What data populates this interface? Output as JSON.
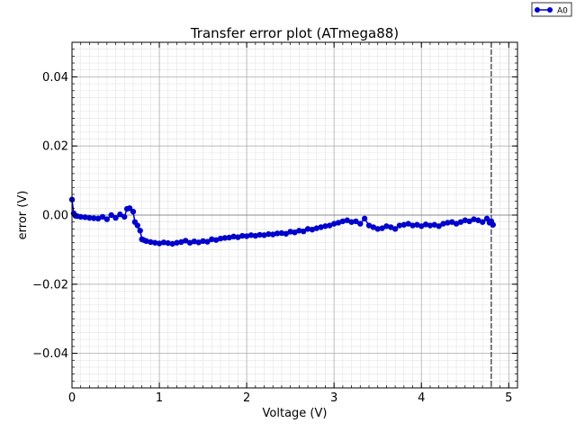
{
  "chart_data": {
    "type": "scatter",
    "title": "Transfer error plot (ATmega88)",
    "xlabel": "Voltage (V)",
    "ylabel": "error (V)",
    "xlim": [
      0,
      5.1
    ],
    "ylim": [
      -0.05,
      0.05
    ],
    "x_ticks": [
      0,
      1,
      2,
      3,
      4,
      5
    ],
    "x_tick_labels": [
      "0",
      "1",
      "2",
      "3",
      "4",
      "5"
    ],
    "y_ticks": [
      -0.04,
      -0.02,
      0.0,
      0.02,
      0.04
    ],
    "y_tick_labels": [
      "−0.04",
      "−0.02",
      "0.00",
      "0.02",
      "0.04"
    ],
    "grid": "major and minor",
    "reference_line_y": 0.0,
    "vertical_marker_x": 4.8,
    "legend": {
      "position": "top-right, outside plot",
      "entries": [
        "A0"
      ]
    },
    "series": [
      {
        "name": "A0",
        "color": "#0000cc",
        "marker": "circle",
        "x": [
          0.0,
          0.02,
          0.04,
          0.06,
          0.1,
          0.15,
          0.2,
          0.25,
          0.3,
          0.35,
          0.4,
          0.45,
          0.5,
          0.55,
          0.6,
          0.63,
          0.66,
          0.7,
          0.72,
          0.75,
          0.78,
          0.8,
          0.82,
          0.85,
          0.9,
          0.95,
          1.0,
          1.05,
          1.1,
          1.15,
          1.2,
          1.25,
          1.3,
          1.35,
          1.4,
          1.45,
          1.5,
          1.55,
          1.6,
          1.65,
          1.7,
          1.75,
          1.8,
          1.85,
          1.9,
          1.95,
          2.0,
          2.05,
          2.1,
          2.15,
          2.2,
          2.25,
          2.3,
          2.35,
          2.4,
          2.45,
          2.5,
          2.55,
          2.6,
          2.65,
          2.7,
          2.75,
          2.8,
          2.85,
          2.9,
          2.95,
          3.0,
          3.05,
          3.1,
          3.15,
          3.2,
          3.25,
          3.3,
          3.35,
          3.4,
          3.45,
          3.5,
          3.55,
          3.6,
          3.65,
          3.7,
          3.75,
          3.8,
          3.85,
          3.9,
          3.95,
          4.0,
          4.05,
          4.1,
          4.15,
          4.2,
          4.25,
          4.3,
          4.35,
          4.4,
          4.45,
          4.5,
          4.55,
          4.6,
          4.65,
          4.7,
          4.75,
          4.78,
          4.8,
          4.82
        ],
        "y": [
          0.0045,
          0.0005,
          -0.0002,
          -0.0003,
          -0.0005,
          -0.0006,
          -0.0008,
          -0.0009,
          -0.001,
          -0.0005,
          -0.0012,
          0.0,
          -0.0008,
          0.0002,
          -0.0005,
          0.0018,
          0.002,
          0.001,
          -0.002,
          -0.003,
          -0.0045,
          -0.007,
          -0.0072,
          -0.0075,
          -0.0078,
          -0.008,
          -0.0082,
          -0.0079,
          -0.0081,
          -0.0083,
          -0.008,
          -0.0078,
          -0.0074,
          -0.008,
          -0.0076,
          -0.0079,
          -0.0075,
          -0.0077,
          -0.007,
          -0.0072,
          -0.0068,
          -0.0066,
          -0.0065,
          -0.0062,
          -0.0064,
          -0.006,
          -0.0061,
          -0.0058,
          -0.006,
          -0.0057,
          -0.0058,
          -0.0055,
          -0.0056,
          -0.0053,
          -0.0052,
          -0.0054,
          -0.0048,
          -0.005,
          -0.0045,
          -0.0047,
          -0.004,
          -0.0042,
          -0.0038,
          -0.0035,
          -0.0032,
          -0.003,
          -0.0025,
          -0.0022,
          -0.0018,
          -0.0015,
          -0.002,
          -0.0018,
          -0.0025,
          -0.001,
          -0.003,
          -0.0035,
          -0.004,
          -0.0038,
          -0.0032,
          -0.0035,
          -0.004,
          -0.003,
          -0.0028,
          -0.0025,
          -0.003,
          -0.0028,
          -0.0032,
          -0.0027,
          -0.003,
          -0.0028,
          -0.0032,
          -0.0025,
          -0.0022,
          -0.002,
          -0.0025,
          -0.002,
          -0.0015,
          -0.0018,
          -0.0012,
          -0.0015,
          -0.002,
          -0.001,
          -0.0022,
          -0.0018,
          -0.0028
        ]
      }
    ]
  }
}
